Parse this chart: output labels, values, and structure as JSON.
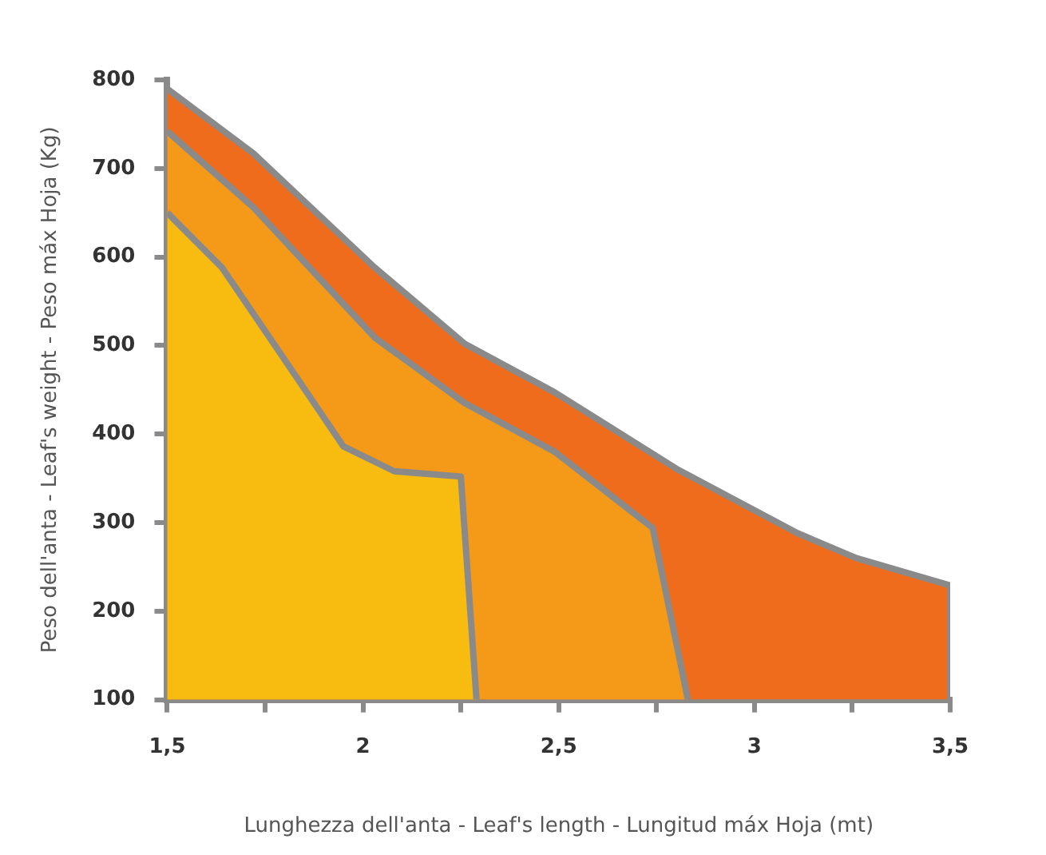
{
  "chart_data": {
    "type": "area",
    "xlabel": "Lunghezza dell'anta - Leaf's length - Lungitud máx Hoja (mt)",
    "ylabel": "Peso dell'anta - Leaf's weight - Peso máx Hoja (Kg)",
    "xlim": [
      1.5,
      3.5
    ],
    "ylim": [
      100,
      800
    ],
    "xticks": [
      {
        "value": 1.5,
        "label": "1,5"
      },
      {
        "value": 1.75,
        "label": null
      },
      2,
      {
        "value": 2.25,
        "label": null
      },
      {
        "value": 2.5,
        "label": "2,5"
      },
      {
        "value": 2.75,
        "label": null
      },
      3,
      {
        "value": 3.25,
        "label": null
      },
      {
        "value": 3.5,
        "label": "3,5"
      }
    ],
    "yticks": [
      100,
      200,
      300,
      400,
      500,
      600,
      700,
      800
    ],
    "series": [
      {
        "color": "#ef6c1c",
        "x": [
          1.5,
          1.72,
          2.03,
          2.26,
          2.49,
          2.8,
          3.11,
          3.26,
          3.5,
          3.5
        ],
        "values": [
          790,
          717,
          588,
          502,
          447,
          361,
          288,
          260,
          229,
          100
        ]
      },
      {
        "color": "#f59a18",
        "x": [
          1.5,
          1.72,
          2.03,
          2.26,
          2.49,
          2.74,
          2.83
        ],
        "values": [
          742,
          656,
          509,
          435,
          380,
          294,
          100
        ]
      },
      {
        "color": "#f8bc10",
        "x": [
          1.5,
          1.64,
          1.8,
          1.95,
          2.08,
          2.25,
          2.29
        ],
        "values": [
          650,
          588,
          484,
          386,
          358,
          352,
          100
        ]
      }
    ]
  }
}
